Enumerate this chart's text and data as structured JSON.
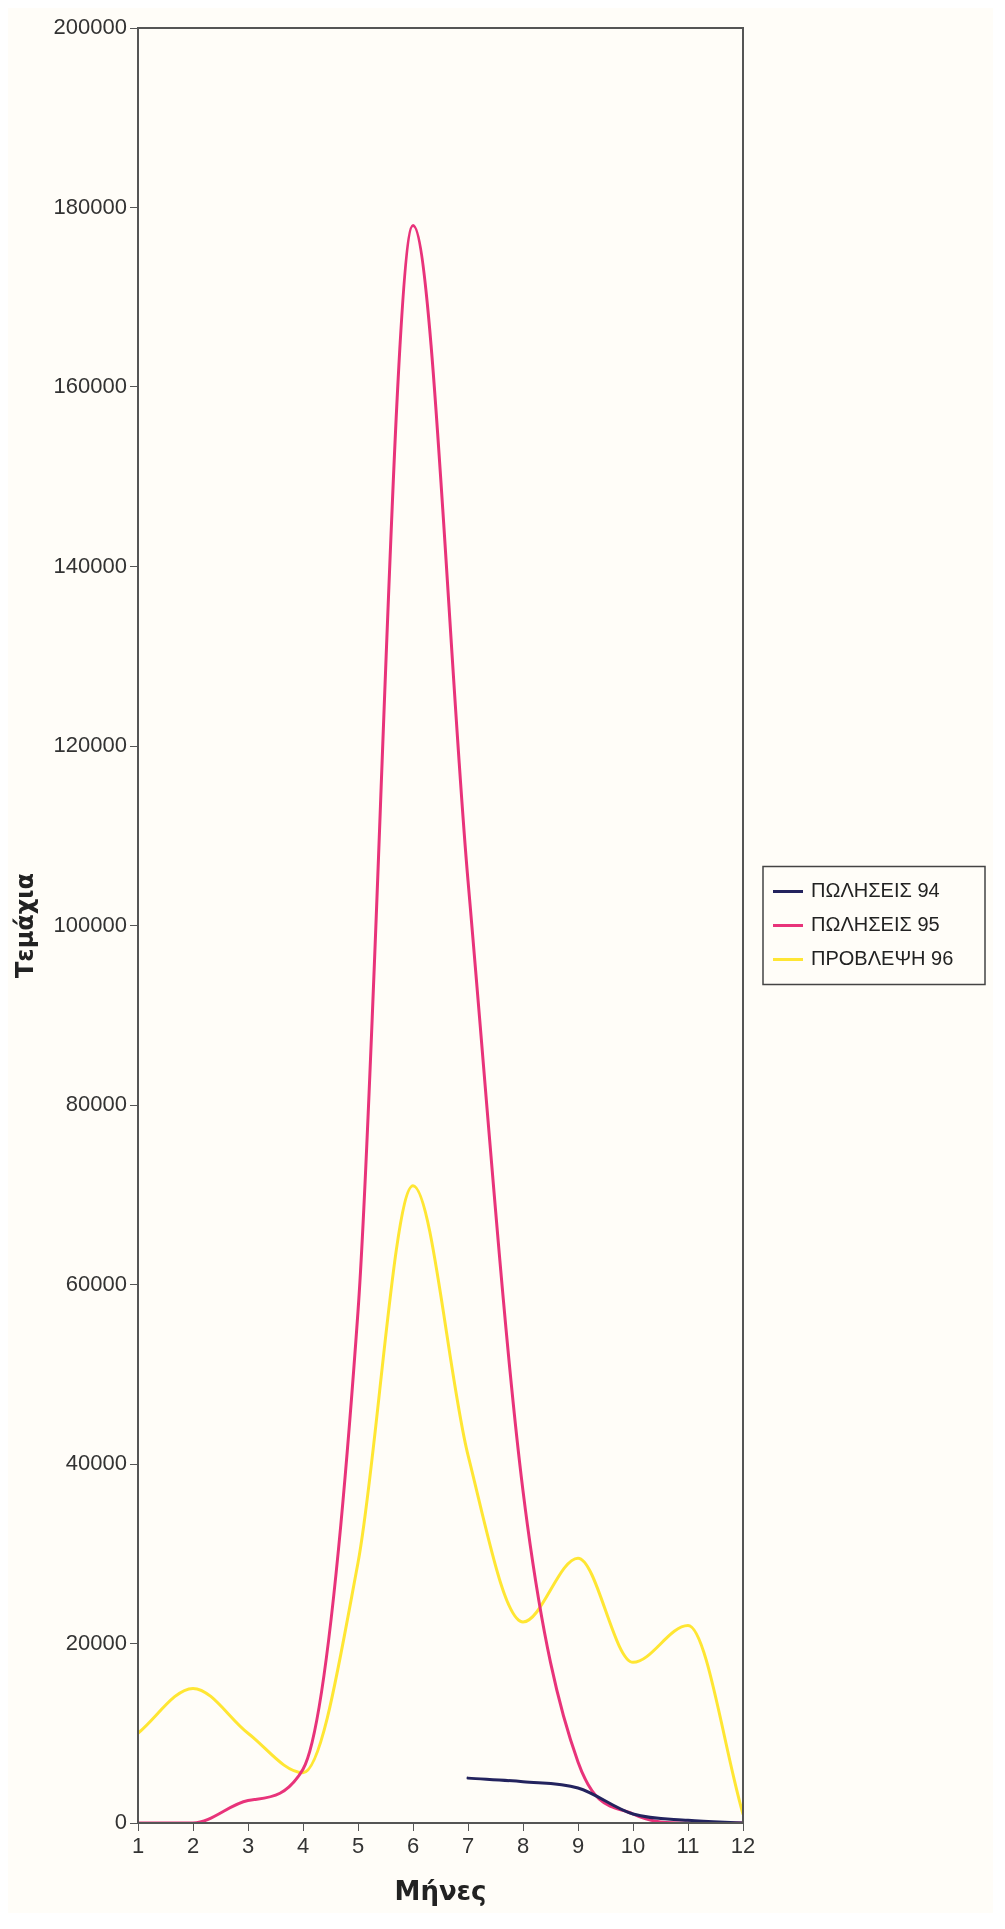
{
  "chart_data": {
    "type": "line",
    "xlabel": "Μήνες",
    "ylabel": "Τεμάχια",
    "x": [
      1,
      2,
      3,
      4,
      5,
      6,
      7,
      8,
      9,
      10,
      11,
      12
    ],
    "series": [
      {
        "name": "ΠΩΛΗΣΕΙΣ 94",
        "color": "#23235e",
        "values": [
          null,
          null,
          null,
          null,
          null,
          null,
          5000,
          4600,
          3900,
          1000,
          300,
          0
        ]
      },
      {
        "name": "ΠΩΛΗΣΕΙΣ 95",
        "color": "#e8337a",
        "values": [
          0,
          0,
          2500,
          6000,
          57000,
          178000,
          105000,
          37000,
          6800,
          1000,
          0,
          0
        ]
      },
      {
        "name": "ΠΡΟΒΛΕΨΗ 96",
        "color": "#ffe633",
        "values": [
          10000,
          15000,
          10000,
          5600,
          29000,
          71000,
          41000,
          22400,
          29500,
          17900,
          22000,
          1000
        ]
      }
    ],
    "xlim": [
      1,
      12
    ],
    "xticks": [
      1,
      2,
      3,
      4,
      5,
      6,
      7,
      8,
      9,
      10,
      11,
      12
    ],
    "ylim": [
      0,
      200000
    ],
    "yticks": [
      0,
      20000,
      40000,
      60000,
      80000,
      100000,
      120000,
      140000,
      160000,
      180000,
      200000
    ],
    "grid": false,
    "legend": "right",
    "marker": "none",
    "line_style": "solid"
  }
}
